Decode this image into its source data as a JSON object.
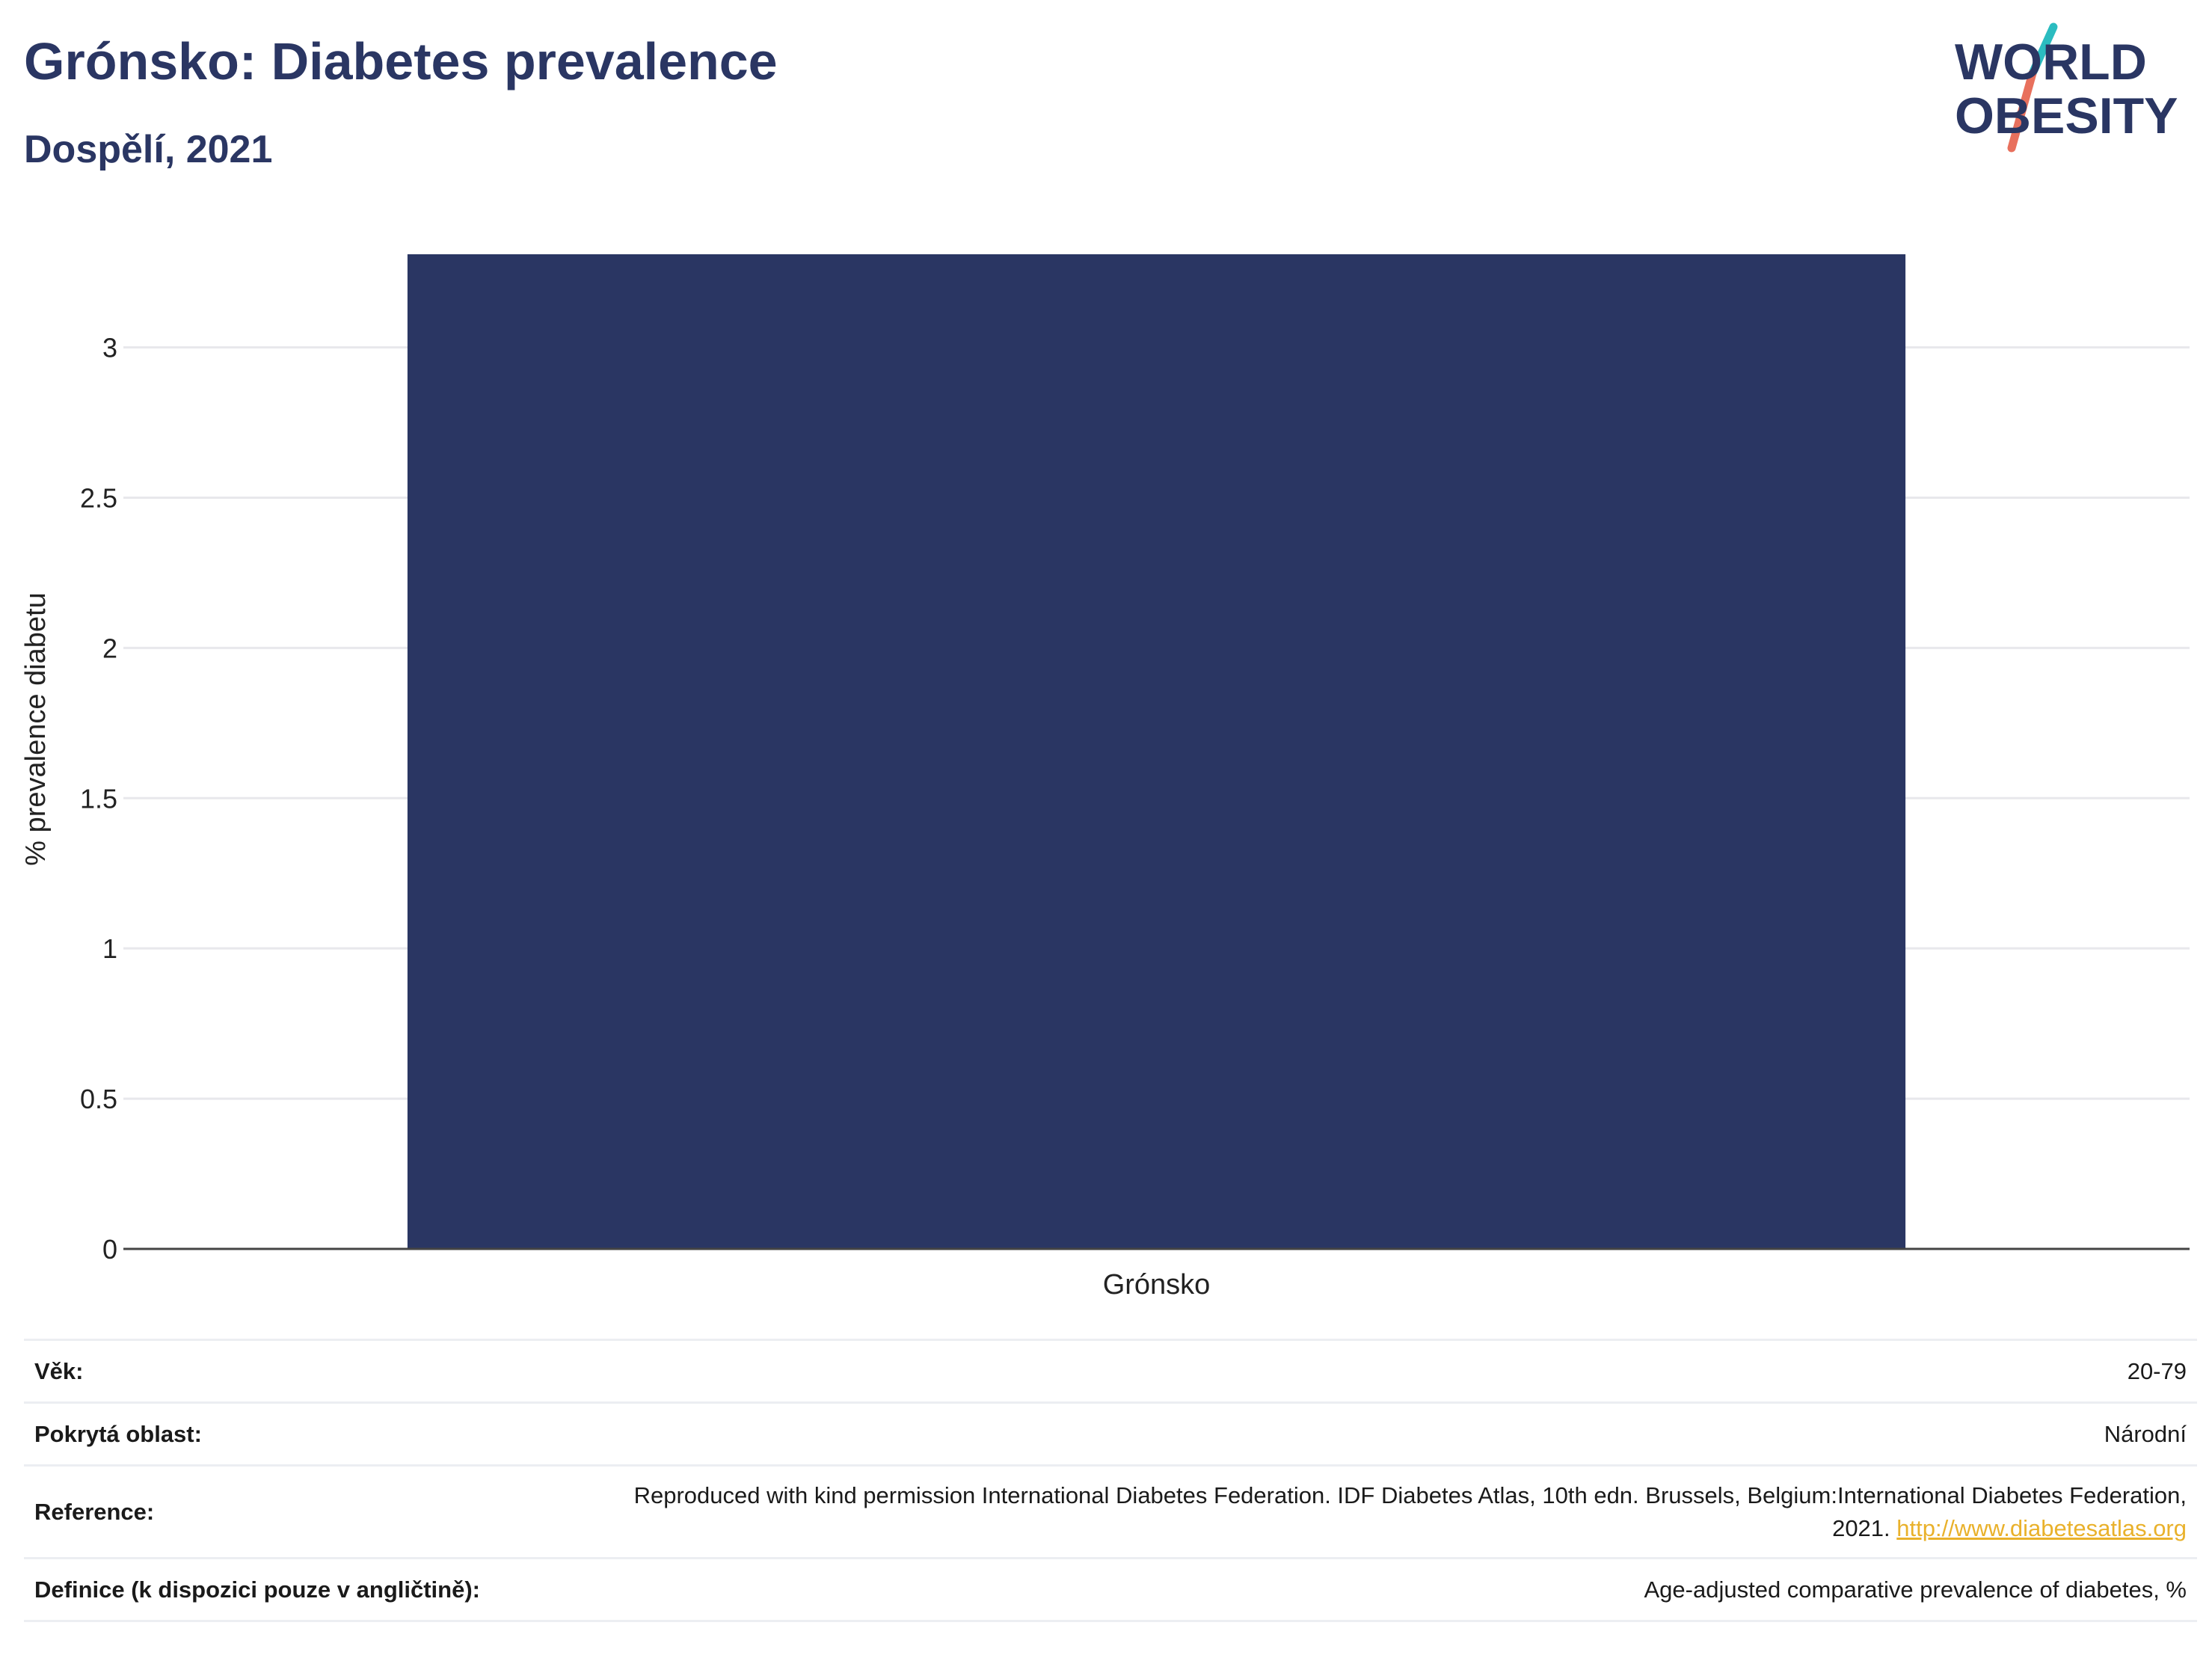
{
  "header": {
    "title": "Grónsko: Diabetes prevalence",
    "subtitle": "Dospělí, 2021"
  },
  "logo": {
    "line1": "WORLD",
    "line2": "OBESITY",
    "colors": {
      "text": "#2a3663",
      "slash_top": "#2bbcc0",
      "slash_bottom": "#e8705d"
    }
  },
  "chart_data": {
    "type": "bar",
    "categories": [
      "Grónsko"
    ],
    "values": [
      3.31
    ],
    "ylabel": "% prevalence diabetu",
    "xlabel": "",
    "ylim": [
      0,
      3.31
    ],
    "yticks": [
      0,
      0.5,
      1,
      1.5,
      2,
      2.5,
      3
    ],
    "ytick_labels": [
      "0",
      "0.5",
      "1",
      "1.5",
      "2",
      "2.5",
      "3"
    ],
    "grid": true,
    "bar_color": "#2a3663"
  },
  "info": {
    "rows": [
      {
        "label": "Věk:",
        "value": "20-79"
      },
      {
        "label": "Pokrytá oblast:",
        "value": "Národní"
      },
      {
        "label": "Reference:",
        "value": "Reproduced with kind permission International Diabetes Federation.  IDF Diabetes Atlas, 10th edn. Brussels, Belgium:International Diabetes Federation, 2021.",
        "link": "http://www.diabetesatlas.org"
      },
      {
        "label": "Definice (k dispozici pouze v angličtině):",
        "value": "Age-adjusted comparative prevalence of diabetes, %"
      }
    ]
  }
}
